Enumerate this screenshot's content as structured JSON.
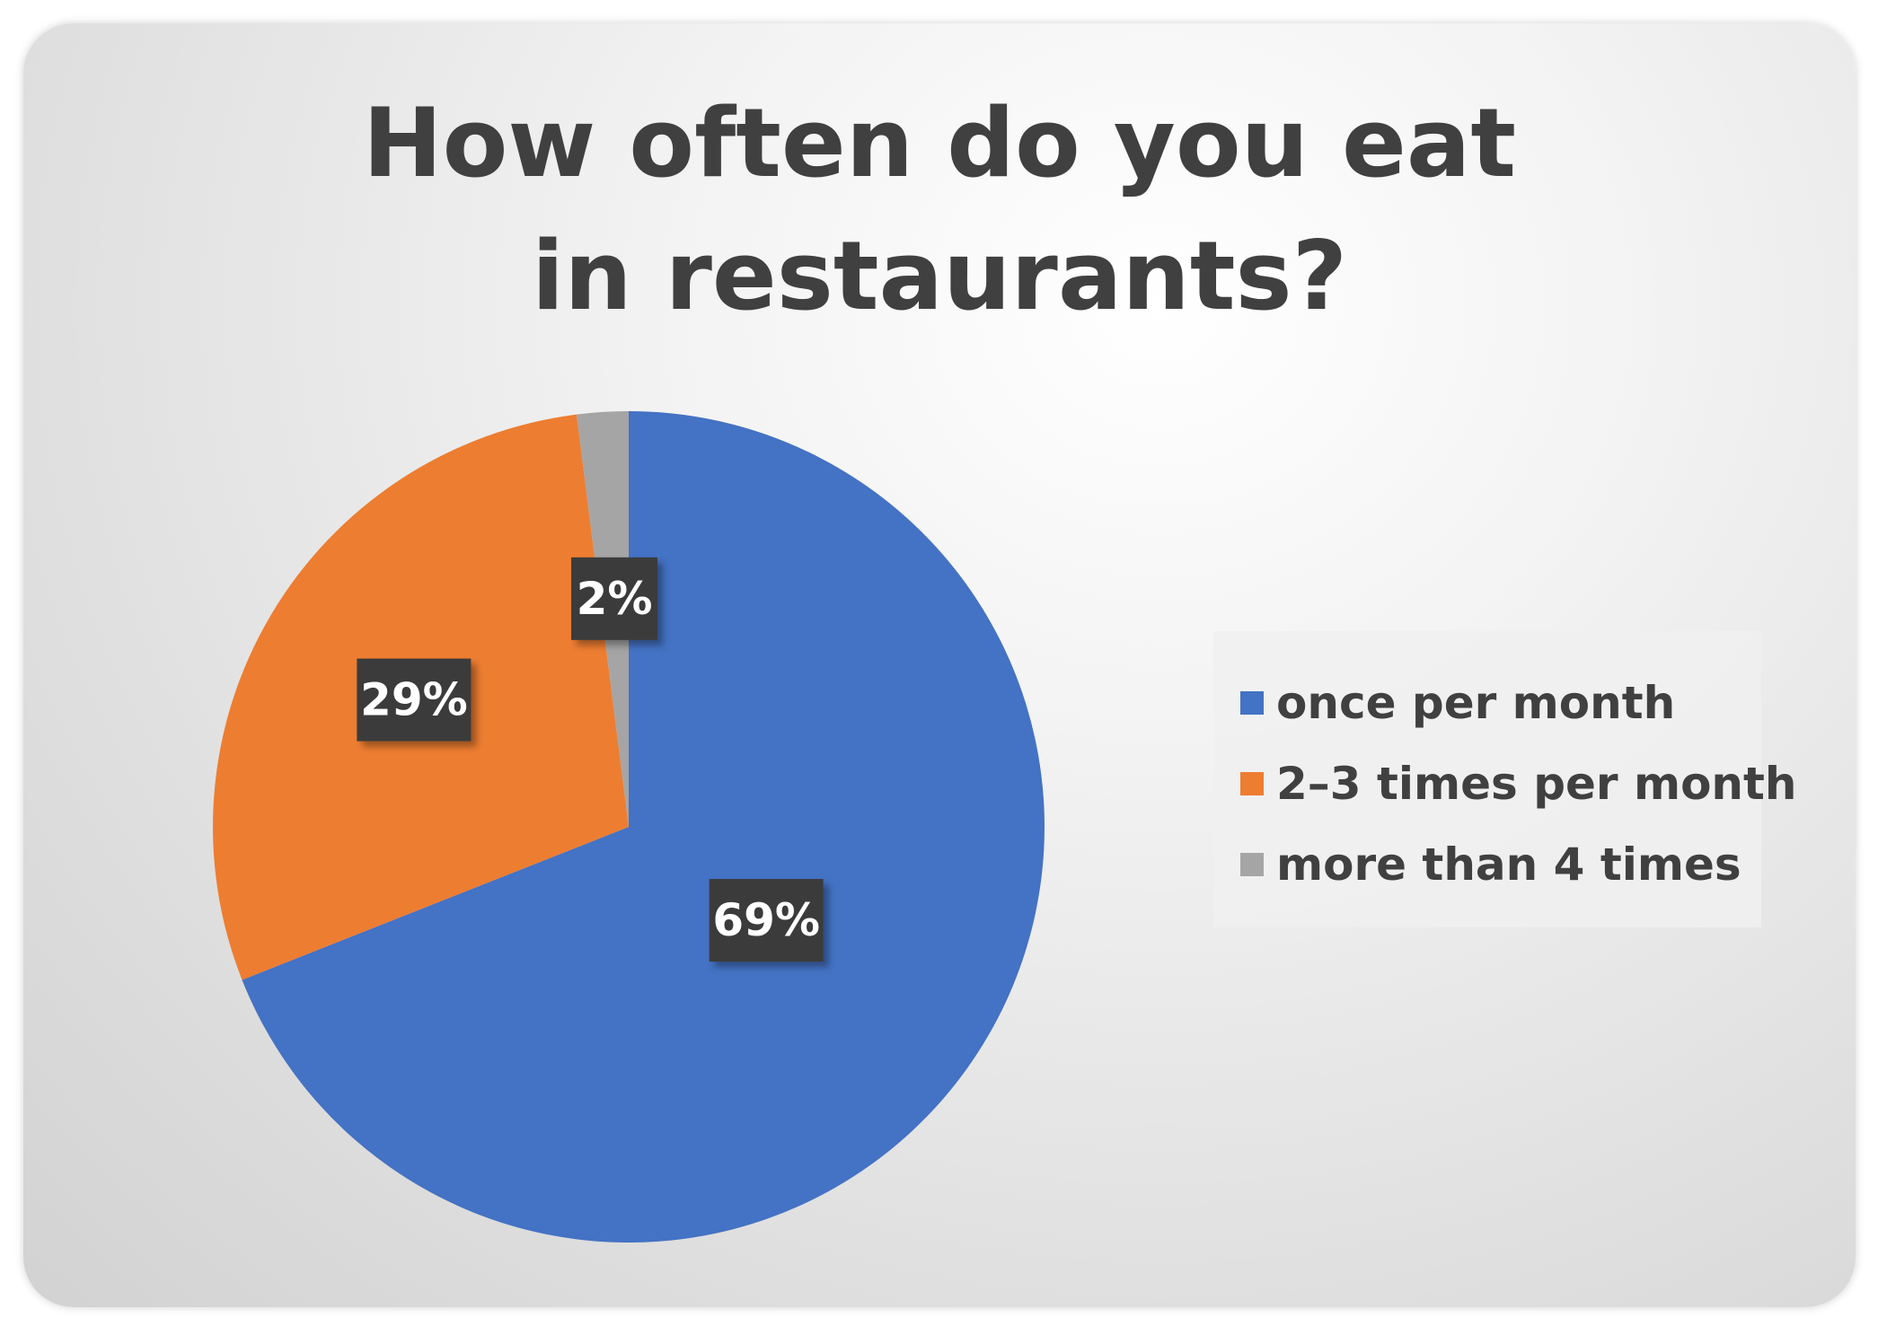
{
  "chart_data": {
    "type": "pie",
    "title": "How often do you eat in restaurants?",
    "categories": [
      "once per month",
      "2–3 times per month",
      "more than 4 times"
    ],
    "values": [
      69,
      29,
      2
    ],
    "data_labels": [
      "69%",
      "29%",
      "2%"
    ],
    "colors": [
      "#4472C4",
      "#ED7D31",
      "#A5A5A5"
    ],
    "start_angle": "12 o'clock, clockwise",
    "legend": "right"
  }
}
